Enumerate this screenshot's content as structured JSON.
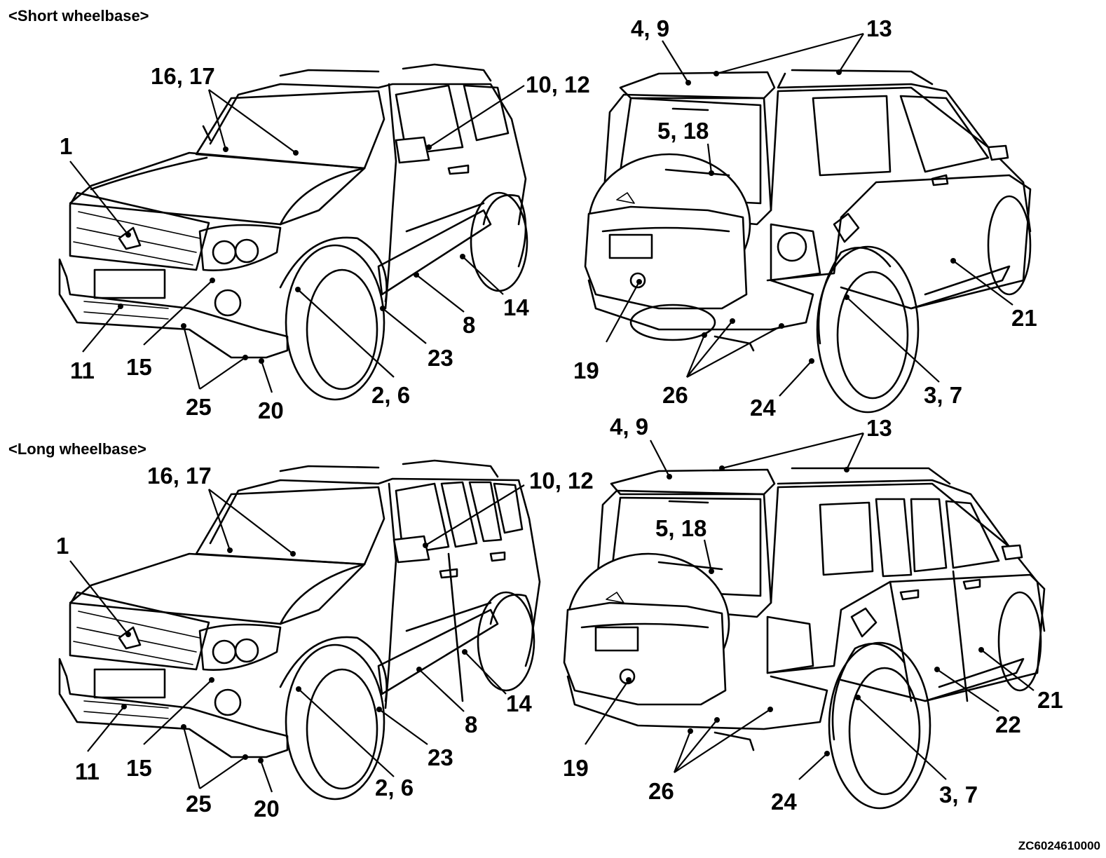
{
  "sections": {
    "short": {
      "title": "<Short wheelbase>"
    },
    "long": {
      "title": "<Long wheelbase>"
    }
  },
  "short_front": {
    "callouts": [
      "16, 17",
      "10, 12",
      "1",
      "8",
      "14",
      "23",
      "11",
      "15",
      "25",
      "20",
      "2, 6"
    ]
  },
  "short_rear": {
    "callouts": [
      "4, 9",
      "13",
      "5, 18",
      "21",
      "19",
      "26",
      "24",
      "3, 7"
    ]
  },
  "long_front": {
    "callouts": [
      "16, 17",
      "10, 12",
      "1",
      "8",
      "14",
      "23",
      "11",
      "15",
      "25",
      "20",
      "2, 6"
    ]
  },
  "long_rear": {
    "callouts": [
      "4, 9",
      "13",
      "5, 18",
      "21",
      "22",
      "19",
      "26",
      "24",
      "3, 7"
    ]
  },
  "figure_code": "ZC6024610000"
}
